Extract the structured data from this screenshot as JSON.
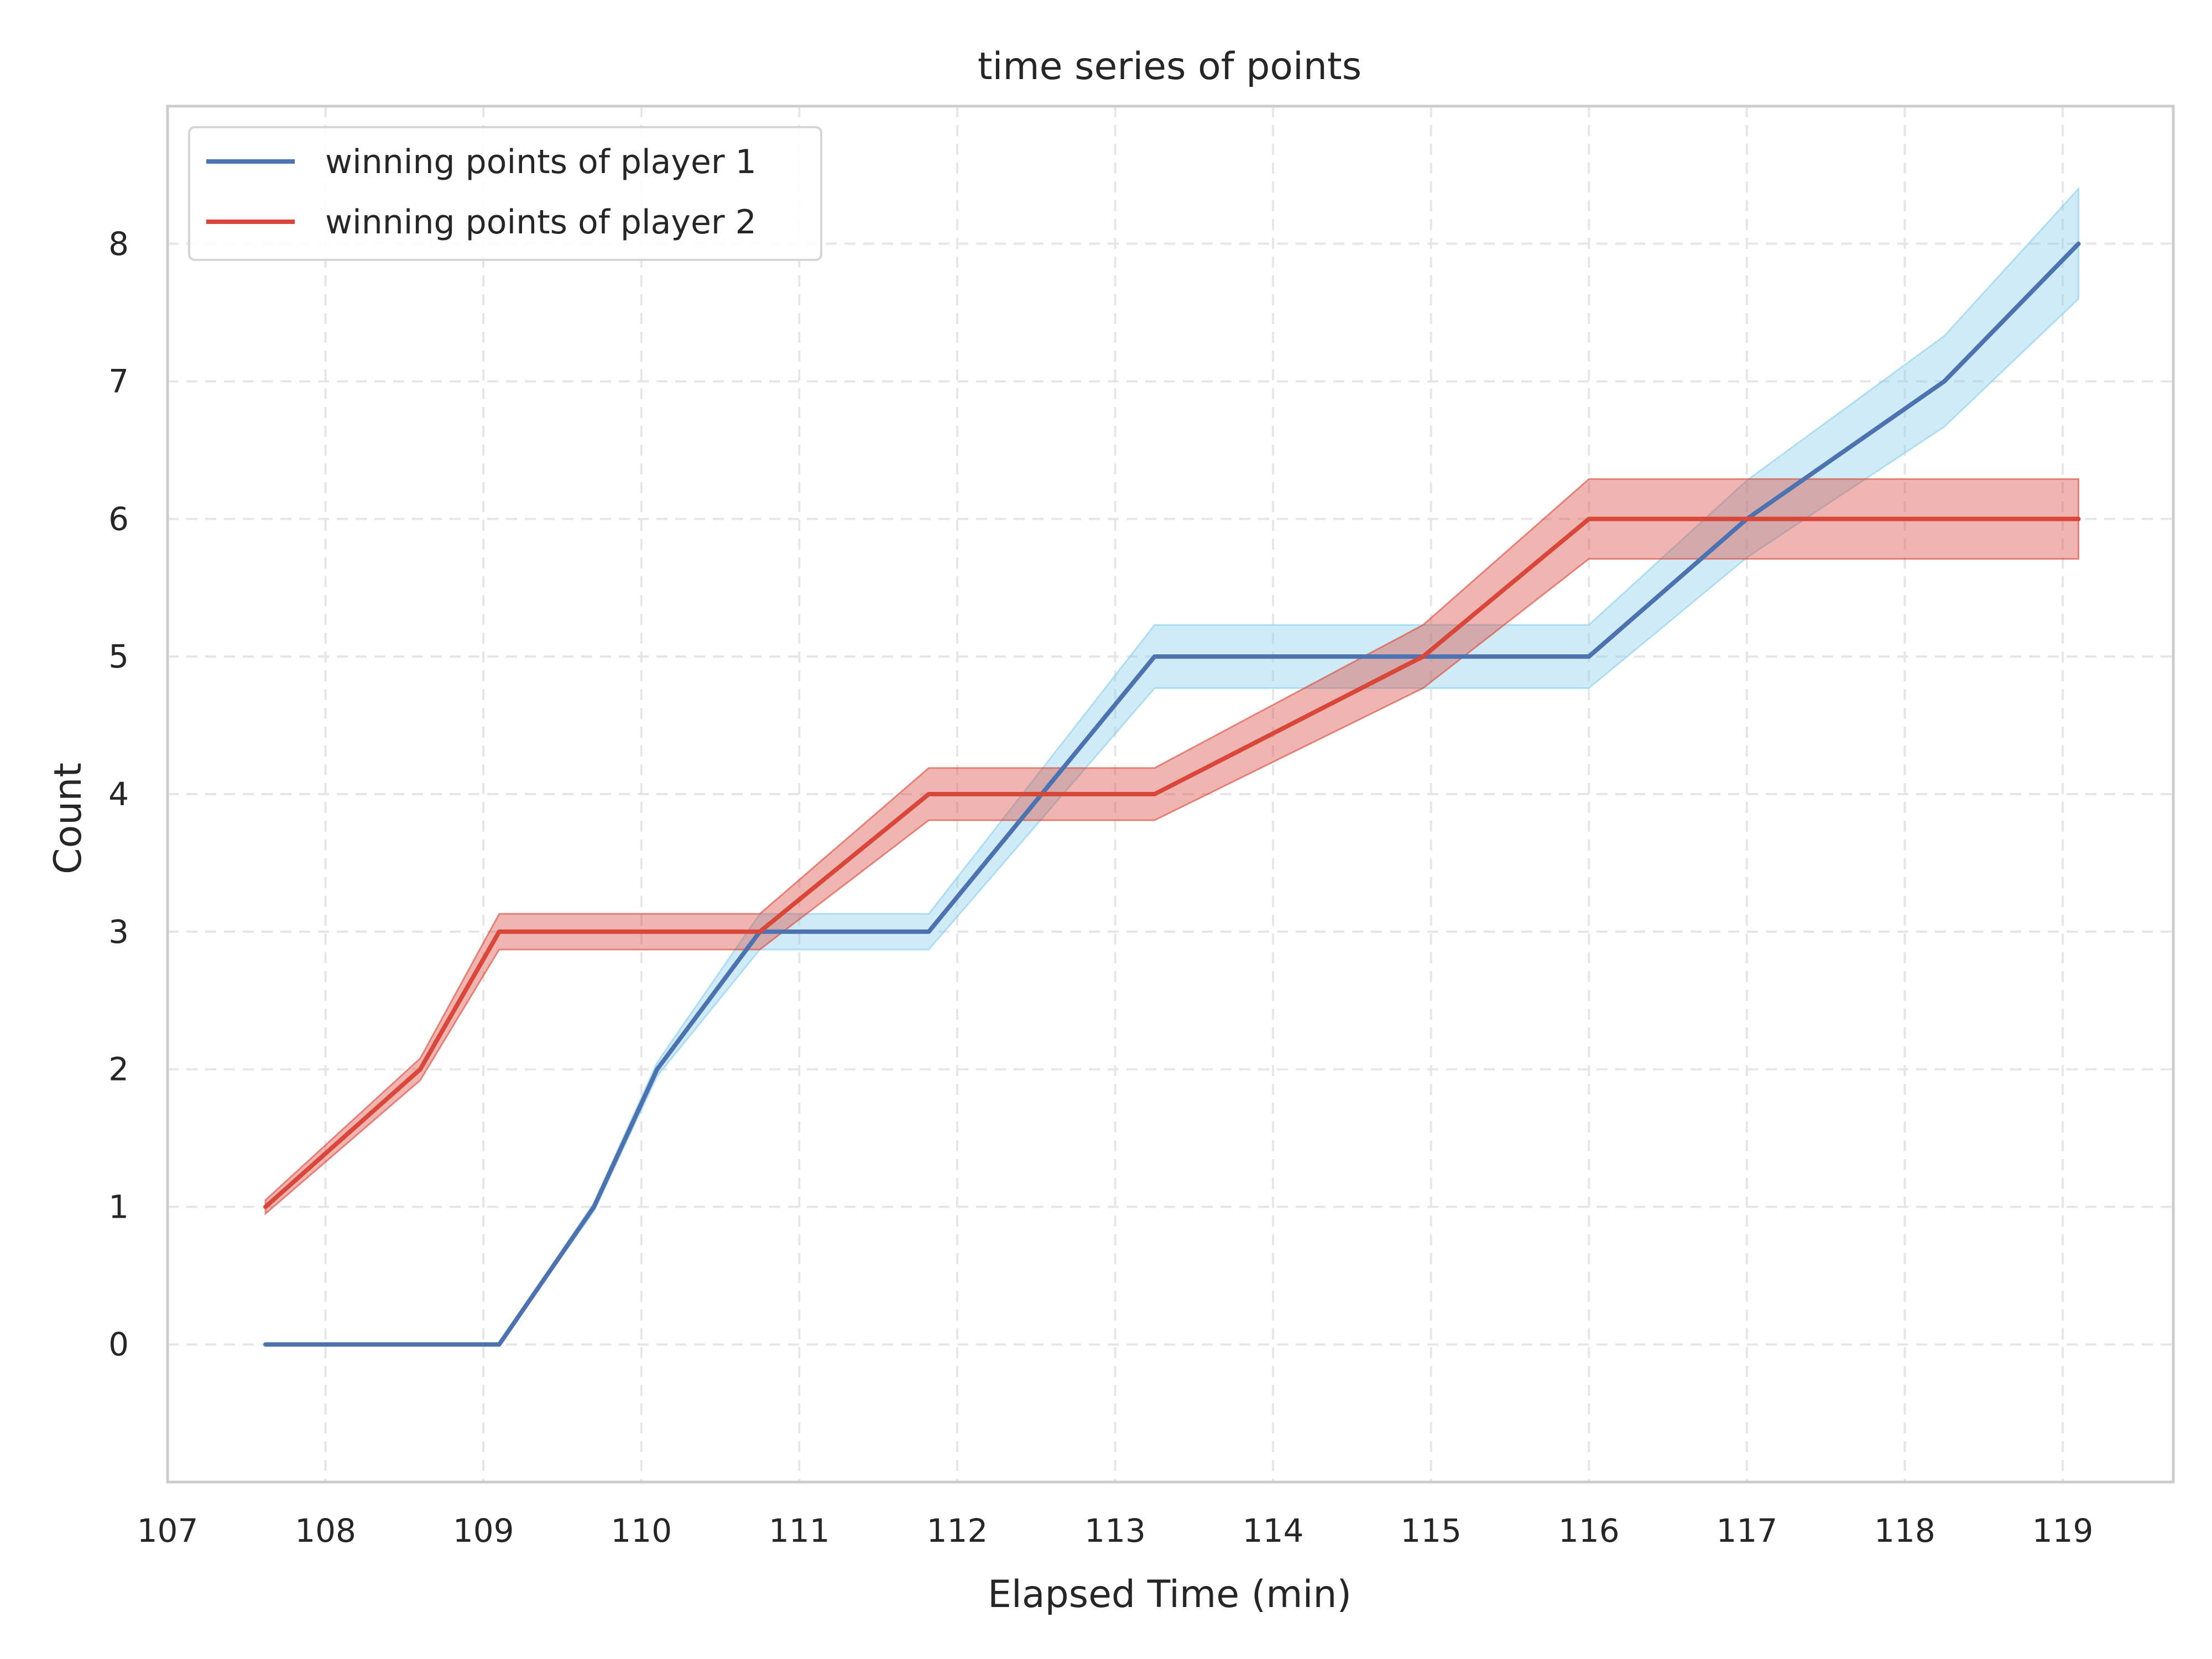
{
  "chart_data": {
    "type": "line",
    "title": "time series of points",
    "xlabel": "Elapsed Time (min)",
    "ylabel": "Count",
    "xlim": [
      107,
      119.7
    ],
    "ylim": [
      -1,
      9
    ],
    "x_ticks": [
      107,
      108,
      109,
      110,
      111,
      112,
      113,
      114,
      115,
      116,
      117,
      118,
      119
    ],
    "y_ticks": [
      0,
      1,
      2,
      3,
      4,
      5,
      6,
      7,
      8
    ],
    "x_tick_labels": [
      "107",
      "108",
      "109",
      "110",
      "111",
      "112",
      "113",
      "114",
      "115",
      "116",
      "117",
      "118",
      "119"
    ],
    "y_tick_labels": [
      "0",
      "1",
      "2",
      "3",
      "4",
      "5",
      "6",
      "7",
      "8"
    ],
    "grid": true,
    "legend_position": "top-left",
    "series": [
      {
        "name": "winning points of player 1",
        "color": "#4c72b0",
        "band_color": "#87ceeb",
        "x": [
          107.62,
          108.6,
          109.1,
          109.7,
          110.1,
          110.75,
          111.82,
          113.25,
          114.95,
          116.0,
          117.0,
          118.25,
          119.1
        ],
        "y": [
          0,
          0,
          0,
          1,
          2,
          3,
          3,
          5,
          5,
          5,
          6,
          7,
          8
        ],
        "band_lower": [
          0,
          0,
          0,
          0.97,
          1.95,
          2.87,
          2.87,
          4.77,
          4.77,
          4.77,
          5.72,
          6.67,
          7.6
        ],
        "band_upper": [
          0,
          0,
          0,
          1.03,
          2.05,
          3.13,
          3.13,
          5.23,
          5.23,
          5.23,
          6.28,
          7.33,
          8.4
        ]
      },
      {
        "name": "winning points of player 2",
        "color": "#d9473b",
        "band_color": "#d9473b",
        "x": [
          107.62,
          108.6,
          109.1,
          110.75,
          111.82,
          113.25,
          114.95,
          116.0,
          117.0,
          118.25,
          119.1
        ],
        "y": [
          1,
          2,
          3,
          3,
          4,
          4,
          5,
          6,
          6,
          6,
          6
        ],
        "band_lower": [
          0.95,
          1.92,
          2.87,
          2.87,
          3.81,
          3.81,
          4.77,
          5.71,
          5.71,
          5.71,
          5.71
        ],
        "band_upper": [
          1.05,
          2.08,
          3.13,
          3.13,
          4.19,
          4.19,
          5.23,
          6.29,
          6.29,
          6.29,
          6.29
        ]
      }
    ]
  }
}
